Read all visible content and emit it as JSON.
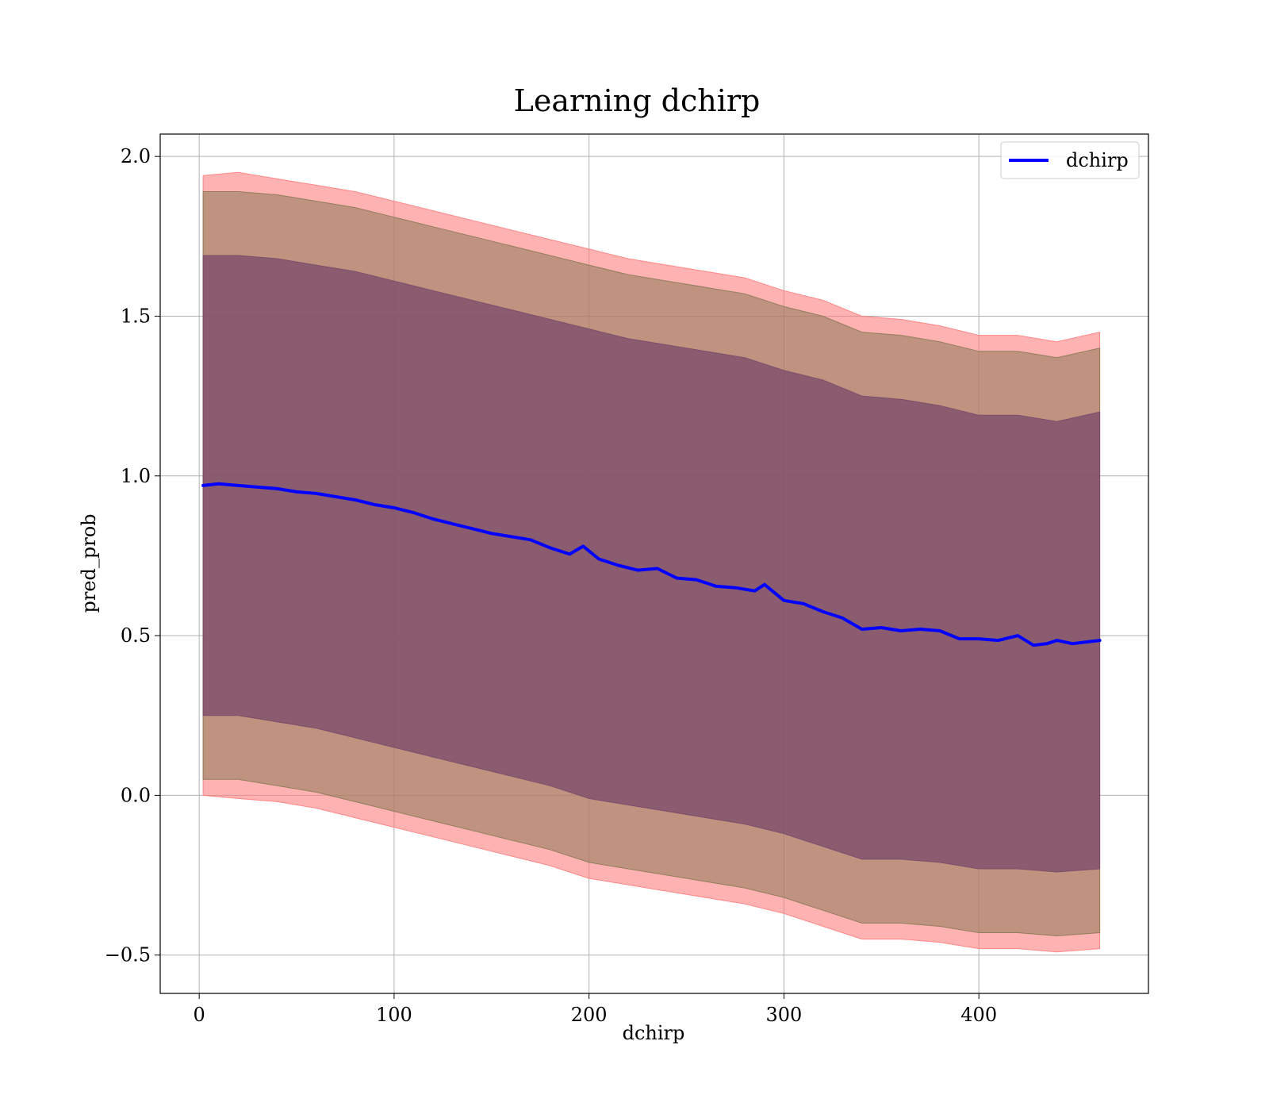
{
  "chart_data": {
    "type": "line",
    "title": "Learning dchirp",
    "xlabel": "dchirp",
    "ylabel": "pred_prob",
    "xlim": [
      -20,
      487
    ],
    "ylim": [
      -0.62,
      2.07
    ],
    "xticks": [
      0,
      100,
      200,
      300,
      400
    ],
    "xtick_labels": [
      "0",
      "100",
      "200",
      "300",
      "400"
    ],
    "yticks": [
      -0.5,
      0.0,
      0.5,
      1.0,
      1.5,
      2.0
    ],
    "ytick_labels": [
      "−0.5",
      "0.0",
      "0.5",
      "1.0",
      "1.5",
      "2.0"
    ],
    "grid": true,
    "legend_position": "top-right",
    "series": [
      {
        "name": "dchirp",
        "color": "#0000ff",
        "x": [
          2,
          10,
          20,
          30,
          40,
          50,
          60,
          70,
          80,
          90,
          100,
          110,
          120,
          130,
          140,
          150,
          160,
          170,
          180,
          190,
          197,
          205,
          215,
          225,
          235,
          245,
          255,
          265,
          275,
          285,
          290,
          300,
          310,
          320,
          330,
          340,
          350,
          360,
          370,
          380,
          390,
          395,
          400,
          410,
          420,
          428,
          435,
          440,
          448,
          462
        ],
        "y": [
          0.97,
          0.975,
          0.97,
          0.965,
          0.96,
          0.95,
          0.945,
          0.935,
          0.925,
          0.91,
          0.9,
          0.885,
          0.865,
          0.85,
          0.835,
          0.82,
          0.81,
          0.8,
          0.775,
          0.755,
          0.78,
          0.74,
          0.72,
          0.705,
          0.71,
          0.68,
          0.675,
          0.655,
          0.65,
          0.64,
          0.66,
          0.61,
          0.6,
          0.575,
          0.555,
          0.52,
          0.525,
          0.515,
          0.52,
          0.515,
          0.49,
          0.49,
          0.49,
          0.485,
          0.5,
          0.47,
          0.475,
          0.485,
          0.475,
          0.485
        ]
      }
    ],
    "bands": [
      {
        "color": "#ff7f7f",
        "opacity": 0.6,
        "x": [
          2,
          20,
          40,
          60,
          80,
          100,
          120,
          140,
          160,
          180,
          200,
          220,
          240,
          260,
          280,
          300,
          320,
          340,
          360,
          380,
          400,
          420,
          440,
          462
        ],
        "lower": [
          0.0,
          -0.01,
          -0.02,
          -0.04,
          -0.07,
          -0.1,
          -0.13,
          -0.16,
          -0.19,
          -0.22,
          -0.26,
          -0.28,
          -0.3,
          -0.32,
          -0.34,
          -0.37,
          -0.41,
          -0.45,
          -0.45,
          -0.46,
          -0.48,
          -0.48,
          -0.49,
          -0.48
        ],
        "upper": [
          1.94,
          1.95,
          1.93,
          1.91,
          1.89,
          1.86,
          1.83,
          1.8,
          1.77,
          1.74,
          1.71,
          1.68,
          1.66,
          1.64,
          1.62,
          1.58,
          1.55,
          1.5,
          1.49,
          1.47,
          1.44,
          1.44,
          1.42,
          1.45
        ]
      },
      {
        "color": "#8b7a55",
        "opacity": 0.55,
        "x": [
          2,
          20,
          40,
          60,
          80,
          100,
          120,
          140,
          160,
          180,
          200,
          220,
          240,
          260,
          280,
          300,
          320,
          340,
          360,
          380,
          400,
          420,
          440,
          462
        ],
        "lower": [
          0.05,
          0.05,
          0.03,
          0.01,
          -0.02,
          -0.05,
          -0.08,
          -0.11,
          -0.14,
          -0.17,
          -0.21,
          -0.23,
          -0.25,
          -0.27,
          -0.29,
          -0.32,
          -0.36,
          -0.4,
          -0.4,
          -0.41,
          -0.43,
          -0.43,
          -0.44,
          -0.43
        ],
        "upper": [
          1.89,
          1.89,
          1.88,
          1.86,
          1.84,
          1.81,
          1.78,
          1.75,
          1.72,
          1.69,
          1.66,
          1.63,
          1.61,
          1.59,
          1.57,
          1.53,
          1.5,
          1.45,
          1.44,
          1.42,
          1.39,
          1.39,
          1.37,
          1.4
        ]
      },
      {
        "color": "#7a4a6a",
        "opacity": 0.75,
        "x": [
          2,
          20,
          40,
          60,
          80,
          100,
          120,
          140,
          160,
          180,
          200,
          220,
          240,
          260,
          280,
          300,
          320,
          340,
          360,
          380,
          400,
          420,
          440,
          462
        ],
        "lower": [
          0.25,
          0.25,
          0.23,
          0.21,
          0.18,
          0.15,
          0.12,
          0.09,
          0.06,
          0.03,
          -0.01,
          -0.03,
          -0.05,
          -0.07,
          -0.09,
          -0.12,
          -0.16,
          -0.2,
          -0.2,
          -0.21,
          -0.23,
          -0.23,
          -0.24,
          -0.23
        ],
        "upper": [
          1.69,
          1.69,
          1.68,
          1.66,
          1.64,
          1.61,
          1.58,
          1.55,
          1.52,
          1.49,
          1.46,
          1.43,
          1.41,
          1.39,
          1.37,
          1.33,
          1.3,
          1.25,
          1.24,
          1.22,
          1.19,
          1.19,
          1.17,
          1.2
        ]
      }
    ]
  }
}
